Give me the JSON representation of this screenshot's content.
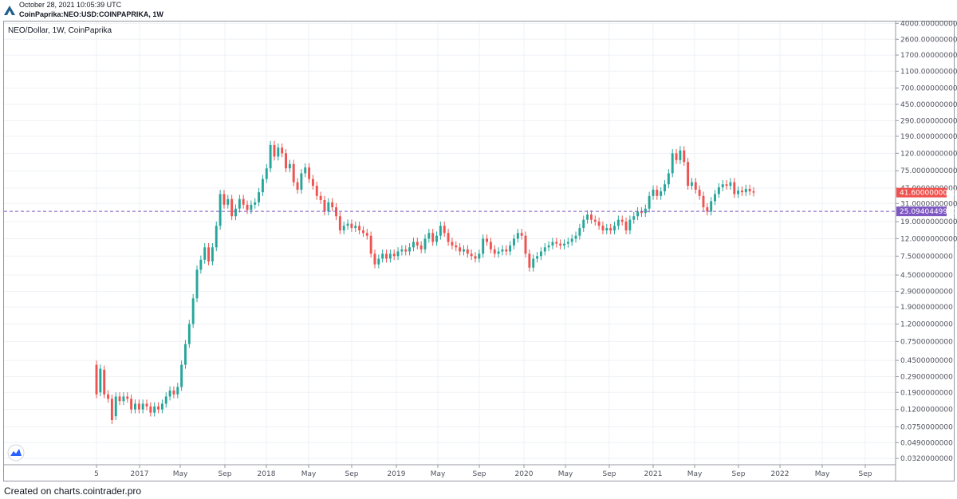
{
  "header": {
    "date": "October 28, 2021 10:05:39 UTC",
    "symbol": "CoinPaprika:NEO:USD:COINPAPRIKA, 1W"
  },
  "footer": "Created on charts.cointrader.pro",
  "colors": {
    "up": "#26a69a",
    "down": "#ef5350",
    "grid": "#eef1f6",
    "support_line": "#7e57c2",
    "last_price_tag": "#ef5350",
    "support_tag": "#7e57c2"
  },
  "chart_data": {
    "type": "candlestick",
    "title": "NEO/Dollar, 1W, CoinPaprika",
    "y_scale": "log",
    "y_ticks": [
      "4000.0000000000",
      "2600.0000000000",
      "1700.0000000000",
      "1100.0000000000",
      "700.0000000000",
      "450.0000000000",
      "290.0000000000",
      "190.0000000000",
      "120.0000000000",
      "75.0000000000",
      "47.0000000000",
      "31.0000000000",
      "19.0000000000",
      "12.0000000000",
      "7.5000000000",
      "4.5000000000",
      "2.9000000000",
      "1.9000000000",
      "1.2000000000",
      "0.7500000000",
      "0.4500000000",
      "0.2900000000",
      "0.1900000000",
      "0.1200000000",
      "0.0750000000",
      "0.0490000000",
      "0.0320000000"
    ],
    "x_ticks": [
      "5",
      "2017",
      "May",
      "Sep",
      "2018",
      "May",
      "Sep",
      "2019",
      "May",
      "Sep",
      "2020",
      "May",
      "Sep",
      "2021",
      "May",
      "Sep",
      "2022",
      "May",
      "Sep"
    ],
    "last_price": "41.6000000000",
    "support_level": "25.0940449900",
    "ylim": [
      0.027,
      4200
    ],
    "candles": [
      {
        "t": 0,
        "o": 0.4,
        "c": 0.18
      },
      {
        "t": 1,
        "o": 0.19,
        "c": 0.36
      },
      {
        "t": 2,
        "o": 0.35,
        "c": 0.18
      },
      {
        "t": 3,
        "o": 0.18,
        "c": 0.16
      },
      {
        "t": 4,
        "o": 0.16,
        "c": 0.09
      },
      {
        "t": 5,
        "o": 0.1,
        "c": 0.17
      },
      {
        "t": 6,
        "o": 0.17,
        "c": 0.15
      },
      {
        "t": 7,
        "o": 0.15,
        "c": 0.17
      },
      {
        "t": 8,
        "o": 0.17,
        "c": 0.16
      },
      {
        "t": 9,
        "o": 0.16,
        "c": 0.12
      },
      {
        "t": 10,
        "o": 0.12,
        "c": 0.14
      },
      {
        "t": 11,
        "o": 0.14,
        "c": 0.12
      },
      {
        "t": 12,
        "o": 0.12,
        "c": 0.14
      },
      {
        "t": 13,
        "o": 0.14,
        "c": 0.13
      },
      {
        "t": 14,
        "o": 0.13,
        "c": 0.11
      },
      {
        "t": 15,
        "o": 0.11,
        "c": 0.13
      },
      {
        "t": 16,
        "o": 0.13,
        "c": 0.12
      },
      {
        "t": 17,
        "o": 0.12,
        "c": 0.14
      },
      {
        "t": 18,
        "o": 0.14,
        "c": 0.17
      },
      {
        "t": 19,
        "o": 0.17,
        "c": 0.2
      },
      {
        "t": 20,
        "o": 0.2,
        "c": 0.18
      },
      {
        "t": 21,
        "o": 0.18,
        "c": 0.22
      },
      {
        "t": 22,
        "o": 0.22,
        "c": 0.4
      },
      {
        "t": 23,
        "o": 0.4,
        "c": 0.7
      },
      {
        "t": 24,
        "o": 0.7,
        "c": 1.2
      },
      {
        "t": 25,
        "o": 1.2,
        "c": 2.4
      },
      {
        "t": 26,
        "o": 2.4,
        "c": 5.2
      },
      {
        "t": 27,
        "o": 5.2,
        "c": 6.8
      },
      {
        "t": 28,
        "o": 6.8,
        "c": 9.5
      },
      {
        "t": 29,
        "o": 9.5,
        "c": 6.5
      },
      {
        "t": 30,
        "o": 6.5,
        "c": 9.5
      },
      {
        "t": 31,
        "o": 9.5,
        "c": 17
      },
      {
        "t": 32,
        "o": 17,
        "c": 40
      },
      {
        "t": 33,
        "o": 40,
        "c": 30
      },
      {
        "t": 34,
        "o": 30,
        "c": 35
      },
      {
        "t": 35,
        "o": 35,
        "c": 22
      },
      {
        "t": 36,
        "o": 22,
        "c": 27
      },
      {
        "t": 37,
        "o": 27,
        "c": 35
      },
      {
        "t": 38,
        "o": 35,
        "c": 30
      },
      {
        "t": 39,
        "o": 30,
        "c": 26
      },
      {
        "t": 40,
        "o": 26,
        "c": 30
      },
      {
        "t": 41,
        "o": 30,
        "c": 32
      },
      {
        "t": 42,
        "o": 32,
        "c": 42
      },
      {
        "t": 43,
        "o": 42,
        "c": 60
      },
      {
        "t": 44,
        "o": 60,
        "c": 80
      },
      {
        "t": 45,
        "o": 80,
        "c": 150
      },
      {
        "t": 46,
        "o": 150,
        "c": 110
      },
      {
        "t": 47,
        "o": 110,
        "c": 140
      },
      {
        "t": 48,
        "o": 140,
        "c": 120
      },
      {
        "t": 49,
        "o": 120,
        "c": 80
      },
      {
        "t": 50,
        "o": 80,
        "c": 90
      },
      {
        "t": 51,
        "o": 90,
        "c": 55
      },
      {
        "t": 52,
        "o": 55,
        "c": 45
      },
      {
        "t": 53,
        "o": 45,
        "c": 70
      },
      {
        "t": 54,
        "o": 70,
        "c": 82
      },
      {
        "t": 55,
        "o": 82,
        "c": 60
      },
      {
        "t": 56,
        "o": 60,
        "c": 50
      },
      {
        "t": 57,
        "o": 50,
        "c": 38
      },
      {
        "t": 58,
        "o": 38,
        "c": 34
      },
      {
        "t": 59,
        "o": 34,
        "c": 25
      },
      {
        "t": 60,
        "o": 25,
        "c": 32
      },
      {
        "t": 61,
        "o": 32,
        "c": 28
      },
      {
        "t": 62,
        "o": 28,
        "c": 22
      },
      {
        "t": 63,
        "o": 22,
        "c": 15
      },
      {
        "t": 64,
        "o": 15,
        "c": 17
      },
      {
        "t": 65,
        "o": 17,
        "c": 18
      },
      {
        "t": 66,
        "o": 18,
        "c": 16
      },
      {
        "t": 67,
        "o": 16,
        "c": 17
      },
      {
        "t": 68,
        "o": 17,
        "c": 15
      },
      {
        "t": 69,
        "o": 15,
        "c": 14
      },
      {
        "t": 70,
        "o": 14,
        "c": 13
      },
      {
        "t": 71,
        "o": 13,
        "c": 8
      },
      {
        "t": 72,
        "o": 8,
        "c": 6
      },
      {
        "t": 73,
        "o": 6,
        "c": 7
      },
      {
        "t": 74,
        "o": 7,
        "c": 8
      },
      {
        "t": 75,
        "o": 8,
        "c": 7
      },
      {
        "t": 76,
        "o": 7,
        "c": 8
      },
      {
        "t": 77,
        "o": 8,
        "c": 7.5
      },
      {
        "t": 78,
        "o": 7.5,
        "c": 8.5
      },
      {
        "t": 79,
        "o": 8.5,
        "c": 9
      },
      {
        "t": 80,
        "o": 9,
        "c": 8.5
      },
      {
        "t": 81,
        "o": 8.5,
        "c": 9.5
      },
      {
        "t": 82,
        "o": 9.5,
        "c": 11
      },
      {
        "t": 83,
        "o": 11,
        "c": 10
      },
      {
        "t": 84,
        "o": 10,
        "c": 9
      },
      {
        "t": 85,
        "o": 9,
        "c": 12
      },
      {
        "t": 86,
        "o": 12,
        "c": 14
      },
      {
        "t": 87,
        "o": 14,
        "c": 11
      },
      {
        "t": 88,
        "o": 11,
        "c": 13
      },
      {
        "t": 89,
        "o": 13,
        "c": 17
      },
      {
        "t": 90,
        "o": 17,
        "c": 14
      },
      {
        "t": 91,
        "o": 14,
        "c": 11
      },
      {
        "t": 92,
        "o": 11,
        "c": 10
      },
      {
        "t": 93,
        "o": 10,
        "c": 9.5
      },
      {
        "t": 94,
        "o": 9.5,
        "c": 8.5
      },
      {
        "t": 95,
        "o": 8.5,
        "c": 9
      },
      {
        "t": 96,
        "o": 9,
        "c": 8
      },
      {
        "t": 97,
        "o": 8,
        "c": 7.5
      },
      {
        "t": 98,
        "o": 7.5,
        "c": 7
      },
      {
        "t": 99,
        "o": 7,
        "c": 8
      },
      {
        "t": 100,
        "o": 8,
        "c": 12
      },
      {
        "t": 101,
        "o": 12,
        "c": 11
      },
      {
        "t": 102,
        "o": 11,
        "c": 9
      },
      {
        "t": 103,
        "o": 9,
        "c": 8
      },
      {
        "t": 104,
        "o": 8,
        "c": 8.5
      },
      {
        "t": 105,
        "o": 8.5,
        "c": 9
      },
      {
        "t": 106,
        "o": 9,
        "c": 8.5
      },
      {
        "t": 107,
        "o": 8.5,
        "c": 10
      },
      {
        "t": 108,
        "o": 10,
        "c": 12
      },
      {
        "t": 109,
        "o": 12,
        "c": 14
      },
      {
        "t": 110,
        "o": 14,
        "c": 13
      },
      {
        "t": 111,
        "o": 13,
        "c": 8
      },
      {
        "t": 112,
        "o": 8,
        "c": 5.5
      },
      {
        "t": 113,
        "o": 5.5,
        "c": 7
      },
      {
        "t": 114,
        "o": 7,
        "c": 7.5
      },
      {
        "t": 115,
        "o": 7.5,
        "c": 8.5
      },
      {
        "t": 116,
        "o": 8.5,
        "c": 9.5
      },
      {
        "t": 117,
        "o": 9.5,
        "c": 10
      },
      {
        "t": 118,
        "o": 10,
        "c": 11
      },
      {
        "t": 119,
        "o": 11,
        "c": 10.5
      },
      {
        "t": 120,
        "o": 10.5,
        "c": 10
      },
      {
        "t": 121,
        "o": 10,
        "c": 10.5
      },
      {
        "t": 122,
        "o": 10.5,
        "c": 11
      },
      {
        "t": 123,
        "o": 11,
        "c": 12
      },
      {
        "t": 124,
        "o": 12,
        "c": 13
      },
      {
        "t": 125,
        "o": 13,
        "c": 16
      },
      {
        "t": 126,
        "o": 16,
        "c": 20
      },
      {
        "t": 127,
        "o": 20,
        "c": 23
      },
      {
        "t": 128,
        "o": 23,
        "c": 20
      },
      {
        "t": 129,
        "o": 20,
        "c": 19
      },
      {
        "t": 130,
        "o": 19,
        "c": 17
      },
      {
        "t": 131,
        "o": 17,
        "c": 15
      },
      {
        "t": 132,
        "o": 15,
        "c": 16
      },
      {
        "t": 133,
        "o": 16,
        "c": 15
      },
      {
        "t": 134,
        "o": 15,
        "c": 17
      },
      {
        "t": 135,
        "o": 17,
        "c": 20
      },
      {
        "t": 136,
        "o": 20,
        "c": 19
      },
      {
        "t": 137,
        "o": 19,
        "c": 15
      },
      {
        "t": 138,
        "o": 15,
        "c": 20
      },
      {
        "t": 139,
        "o": 20,
        "c": 22
      },
      {
        "t": 140,
        "o": 22,
        "c": 25
      },
      {
        "t": 141,
        "o": 25,
        "c": 24
      },
      {
        "t": 142,
        "o": 24,
        "c": 27
      },
      {
        "t": 143,
        "o": 27,
        "c": 38
      },
      {
        "t": 144,
        "o": 38,
        "c": 45
      },
      {
        "t": 145,
        "o": 45,
        "c": 38
      },
      {
        "t": 146,
        "o": 38,
        "c": 43
      },
      {
        "t": 147,
        "o": 43,
        "c": 52
      },
      {
        "t": 148,
        "o": 52,
        "c": 70
      },
      {
        "t": 149,
        "o": 70,
        "c": 120
      },
      {
        "t": 150,
        "o": 120,
        "c": 100
      },
      {
        "t": 151,
        "o": 100,
        "c": 130
      },
      {
        "t": 152,
        "o": 130,
        "c": 95
      },
      {
        "t": 153,
        "o": 95,
        "c": 50
      },
      {
        "t": 154,
        "o": 50,
        "c": 55
      },
      {
        "t": 155,
        "o": 55,
        "c": 45
      },
      {
        "t": 156,
        "o": 45,
        "c": 38
      },
      {
        "t": 157,
        "o": 38,
        "c": 28
      },
      {
        "t": 158,
        "o": 28,
        "c": 25
      },
      {
        "t": 159,
        "o": 25,
        "c": 33
      },
      {
        "t": 160,
        "o": 33,
        "c": 40
      },
      {
        "t": 161,
        "o": 40,
        "c": 48
      },
      {
        "t": 162,
        "o": 48,
        "c": 52
      },
      {
        "t": 163,
        "o": 52,
        "c": 50
      },
      {
        "t": 164,
        "o": 50,
        "c": 55
      },
      {
        "t": 165,
        "o": 55,
        "c": 40
      },
      {
        "t": 166,
        "o": 40,
        "c": 44
      },
      {
        "t": 167,
        "o": 44,
        "c": 42
      },
      {
        "t": 168,
        "o": 42,
        "c": 46
      },
      {
        "t": 169,
        "o": 46,
        "c": 43
      },
      {
        "t": 170,
        "o": 43,
        "c": 41.6
      }
    ]
  }
}
